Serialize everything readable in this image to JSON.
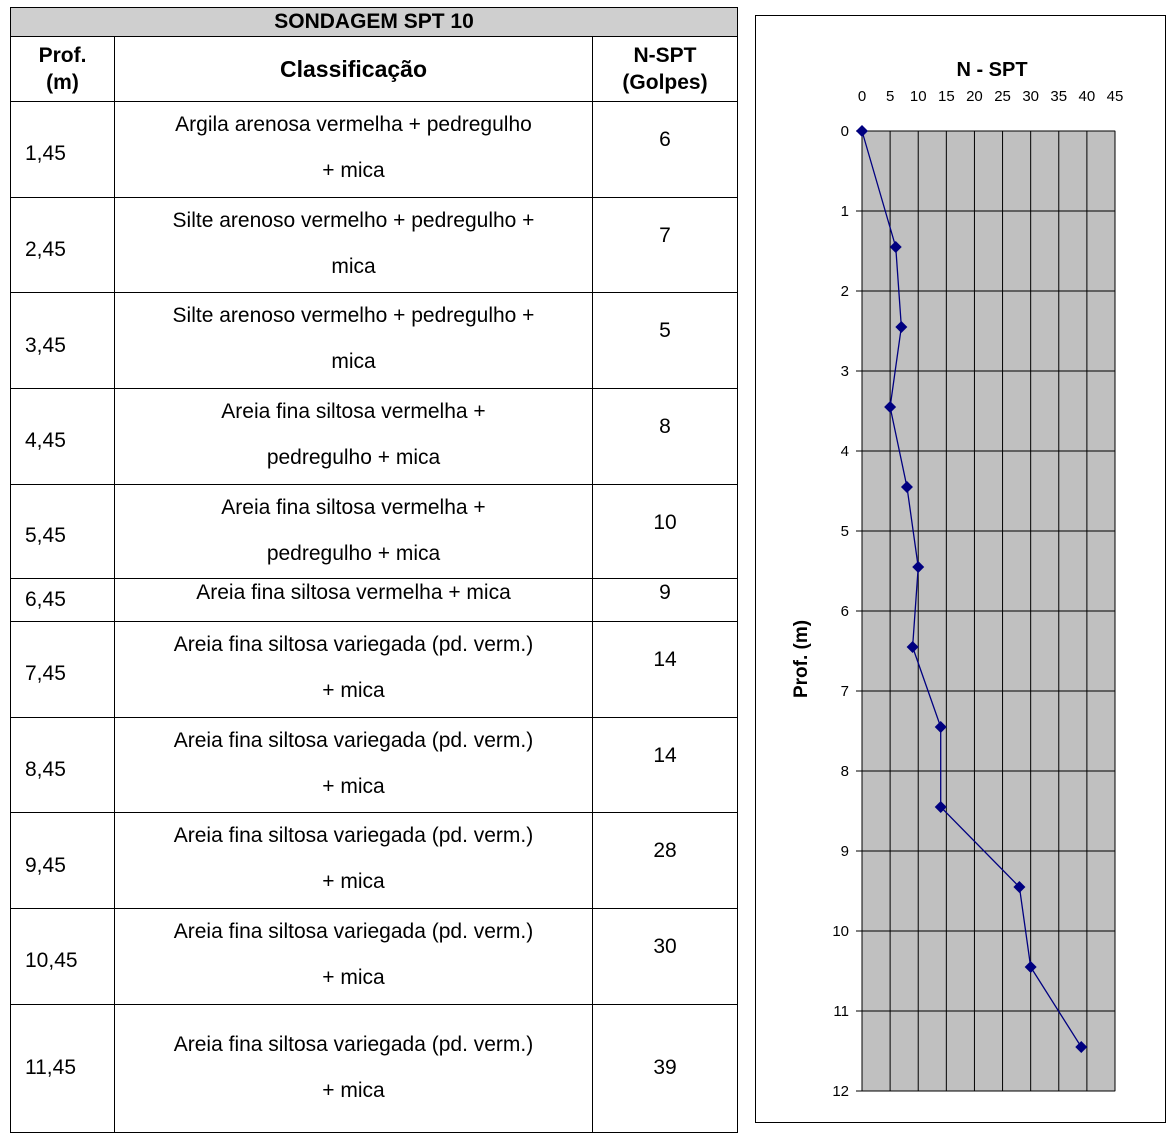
{
  "table": {
    "title": "SONDAGEM SPT 10",
    "headers": {
      "prof": [
        "Prof.",
        "(m)"
      ],
      "classificacao": "Classificação",
      "nspt": [
        "N-SPT",
        "(Golpes)"
      ]
    },
    "rows": [
      {
        "prof": "1,45",
        "class_lines": [
          "Argila arenosa vermelha + pedregulho",
          "+ mica"
        ],
        "nspt": "6"
      },
      {
        "prof": "2,45",
        "class_lines": [
          "Silte arenoso vermelho + pedregulho +",
          "mica"
        ],
        "nspt": "7"
      },
      {
        "prof": "3,45",
        "class_lines": [
          "Silte arenoso vermelho + pedregulho +",
          "mica"
        ],
        "nspt": "5"
      },
      {
        "prof": "4,45",
        "class_lines": [
          "Areia fina siltosa vermelha +",
          "pedregulho + mica"
        ],
        "nspt": "8"
      },
      {
        "prof": "5,45",
        "class_lines": [
          "Areia fina siltosa vermelha +",
          "pedregulho + mica"
        ],
        "nspt": "10"
      },
      {
        "prof": "6,45",
        "class_lines": [
          "Areia fina siltosa vermelha + mica"
        ],
        "nspt": "9"
      },
      {
        "prof": "7,45",
        "class_lines": [
          "Areia fina siltosa variegada (pd. verm.)",
          "+ mica"
        ],
        "nspt": "14"
      },
      {
        "prof": "8,45",
        "class_lines": [
          "Areia fina siltosa variegada (pd. verm.)",
          "+ mica"
        ],
        "nspt": "14"
      },
      {
        "prof": "9,45",
        "class_lines": [
          "Areia fina siltosa variegada (pd. verm.)",
          "+ mica"
        ],
        "nspt": "28"
      },
      {
        "prof": "10,45",
        "class_lines": [
          "Areia fina siltosa variegada (pd. verm.)",
          "+ mica"
        ],
        "nspt": "30"
      },
      {
        "prof": "11,45",
        "class_lines": [
          "Areia fina siltosa variegada (pd. verm.)",
          "+ mica"
        ],
        "nspt": "39"
      }
    ]
  },
  "chart_data": {
    "type": "line",
    "title": "N - SPT",
    "xlabel": "",
    "ylabel": "Prof. (m)",
    "xlim": [
      0,
      45
    ],
    "ylim": [
      0,
      12
    ],
    "x_ticks": [
      "0",
      "5",
      "10",
      "15",
      "20",
      "25",
      "30",
      "35",
      "40",
      "45"
    ],
    "y_ticks": [
      "0",
      "1",
      "2",
      "3",
      "4",
      "5",
      "6",
      "7",
      "8",
      "9",
      "10",
      "11",
      "12"
    ],
    "x_axis_position": "top",
    "y_axis_inverted": true,
    "grid": true,
    "series": [
      {
        "x": [
          0,
          6,
          7,
          5,
          8,
          10,
          9,
          14,
          14,
          28,
          30,
          39
        ],
        "y": [
          0,
          1.45,
          2.45,
          3.45,
          4.45,
          5.45,
          6.45,
          7.45,
          8.45,
          9.45,
          10.45,
          11.45
        ]
      }
    ],
    "colors": {
      "plot_bg": "#c0c0c0",
      "line": "#000080",
      "marker": "#000080",
      "grid": "#000000"
    }
  }
}
